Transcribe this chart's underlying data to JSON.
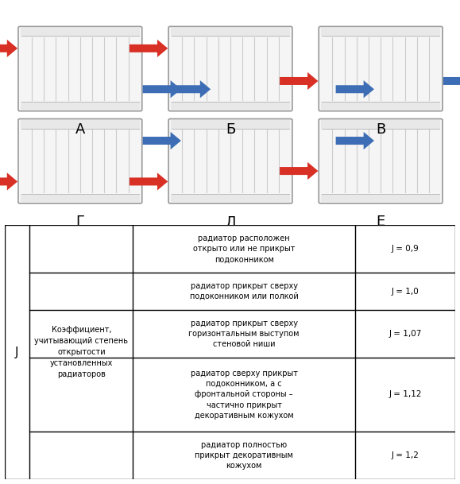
{
  "radiator_labels": [
    "А",
    "Б",
    "В",
    "Г",
    "Д",
    "Е"
  ],
  "table_col1": "J",
  "table_col2": "Коэффициент,\nучитывающий степень\nоткрытости\nустановленных\nрадиаторов",
  "table_rows": [
    {
      "description": "радиатор расположен\nоткрыто или не прикрыт\nподоконником",
      "value": "J = 0,9"
    },
    {
      "description": "радиатор прикрыт сверху\nподоконником или полкой",
      "value": "J = 1,0"
    },
    {
      "description": "радиатор прикрыт сверху\nгоризонтальным выступом\nстеновой ниши",
      "value": "J = 1,07"
    },
    {
      "description": "радиатор сверху прикрыт\nподоконником, а с\nфронтальной стороны –\nчастично прикрыт\nдекоративным кожухом",
      "value": "J = 1,12"
    },
    {
      "description": "радиатор полностью\nприкрыт декоративным\nкожухом",
      "value": "J = 1,2"
    }
  ],
  "red_color": "#d93025",
  "blue_color": "#3d6eb5",
  "radiator_fill": "#f5f5f5",
  "radiator_edge": "#aaaaaa",
  "background": "#ffffff",
  "text_color": "#000000",
  "border_color": "#000000",
  "n_sections": 10,
  "figsize": [
    5.79,
    6.09
  ],
  "dpi": 100
}
